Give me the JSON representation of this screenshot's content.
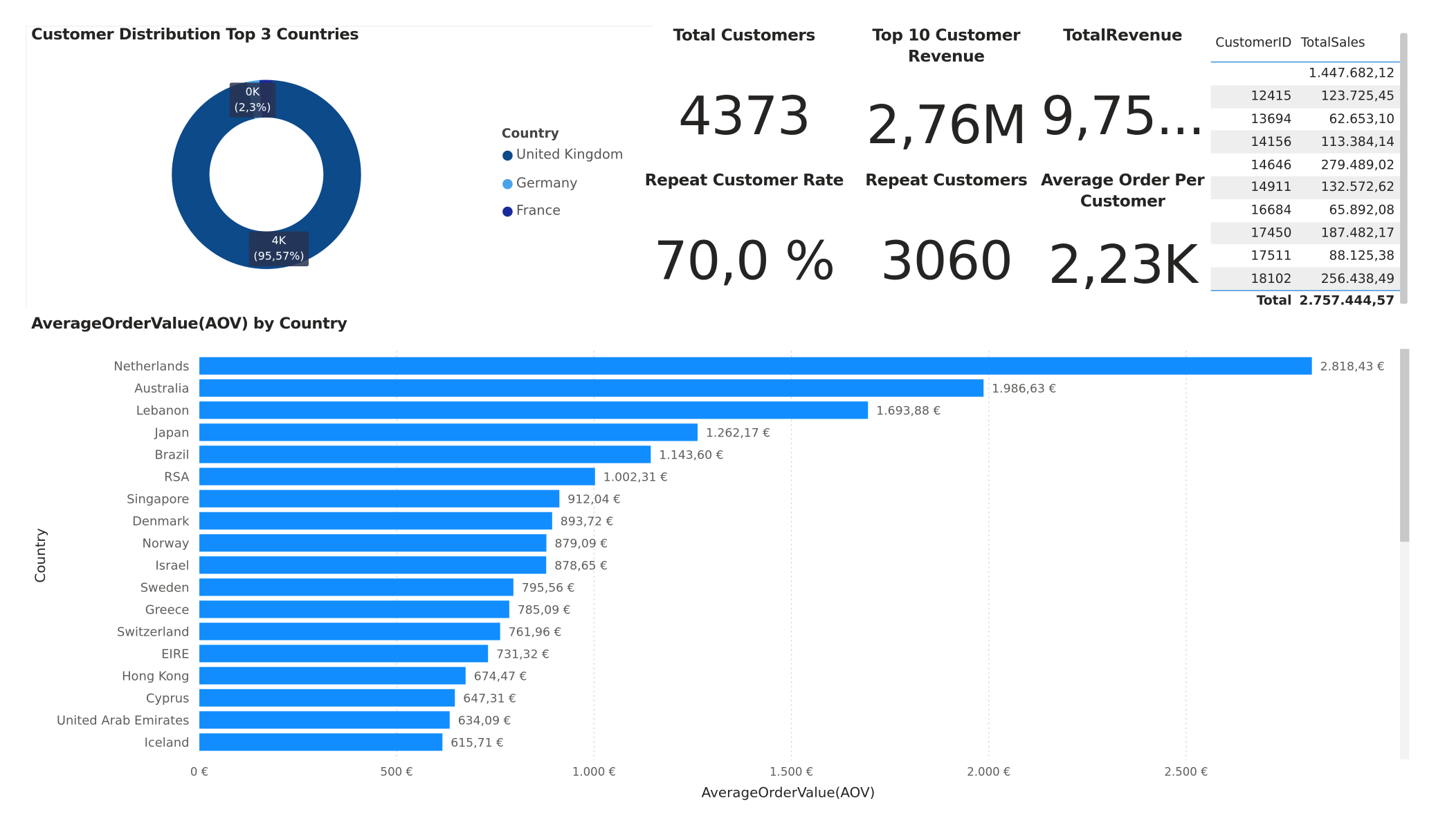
{
  "donut": {
    "title": "Customer Distribution Top 3 Countries",
    "legend_title": "Country",
    "legend": [
      {
        "label": "United Kingdom",
        "color": "#0c4a8a"
      },
      {
        "label": "Germany",
        "color": "#4aa3e8"
      },
      {
        "label": "France",
        "color": "#1a2a9a"
      }
    ],
    "labels": {
      "small_value": "0K",
      "small_pct": "(2,3%)",
      "large_value": "4K",
      "large_pct": "(95,57%)"
    },
    "shares": [
      95.57,
      2.13,
      2.3
    ]
  },
  "kpis": {
    "total_customers": {
      "title": "Total Customers",
      "value": "4373"
    },
    "top10_revenue": {
      "title_line1": "Top 10 Customer",
      "title_line2": "Revenue",
      "value": "2,76M"
    },
    "total_revenue": {
      "title": "TotalRevenue",
      "value": "9,75..."
    },
    "repeat_rate": {
      "title": "Repeat Customer Rate",
      "value": "70,0 %"
    },
    "repeat_customers": {
      "title": "Repeat Customers",
      "value": "3060"
    },
    "avg_orders": {
      "title_line1": "Average Order Per",
      "title_line2": "Customer",
      "value": "2,23K"
    }
  },
  "table": {
    "headers": [
      "CustomerID",
      "TotalSales"
    ],
    "rows": [
      [
        "",
        "1.447.682,12"
      ],
      [
        "12415",
        "123.725,45"
      ],
      [
        "13694",
        "62.653,10"
      ],
      [
        "14156",
        "113.384,14"
      ],
      [
        "14646",
        "279.489,02"
      ],
      [
        "14911",
        "132.572,62"
      ],
      [
        "16684",
        "65.892,08"
      ],
      [
        "17450",
        "187.482,17"
      ],
      [
        "17511",
        "88.125,38"
      ],
      [
        "18102",
        "256.438,49"
      ]
    ],
    "total_label": "Total",
    "total_value": "2.757.444,57"
  },
  "chart_data": {
    "type": "bar",
    "orientation": "horizontal",
    "title": "AverageOrderValue(AOV) by Country",
    "xlabel": "AverageOrderValue(AOV)",
    "ylabel": "Country",
    "bar_color": "#118dff",
    "xlim": [
      0,
      2818.43
    ],
    "x_ticks": [
      {
        "value": 0,
        "label": "0 €"
      },
      {
        "value": 500,
        "label": "500 €"
      },
      {
        "value": 1000,
        "label": "1.000 €"
      },
      {
        "value": 1500,
        "label": "1.500 €"
      },
      {
        "value": 2000,
        "label": "2.000 €"
      },
      {
        "value": 2500,
        "label": "2.500 €"
      }
    ],
    "categories": [
      "Netherlands",
      "Australia",
      "Lebanon",
      "Japan",
      "Brazil",
      "RSA",
      "Singapore",
      "Denmark",
      "Norway",
      "Israel",
      "Sweden",
      "Greece",
      "Switzerland",
      "EIRE",
      "Hong Kong",
      "Cyprus",
      "United Arab Emirates",
      "Iceland"
    ],
    "values": [
      2818.43,
      1986.63,
      1693.88,
      1262.17,
      1143.6,
      1002.31,
      912.04,
      893.72,
      879.09,
      878.65,
      795.56,
      785.09,
      761.96,
      731.32,
      674.47,
      647.31,
      634.09,
      615.71
    ],
    "value_labels": [
      "2.818,43 €",
      "1.986,63 €",
      "1.693,88 €",
      "1.262,17 €",
      "1.143,60 €",
      "1.002,31 €",
      "912,04 €",
      "893,72 €",
      "879,09 €",
      "878,65 €",
      "795,56 €",
      "785,09 €",
      "761,96 €",
      "731,32 €",
      "674,47 €",
      "647,31 €",
      "634,09 €",
      "615,71 €"
    ],
    "grid": true
  }
}
